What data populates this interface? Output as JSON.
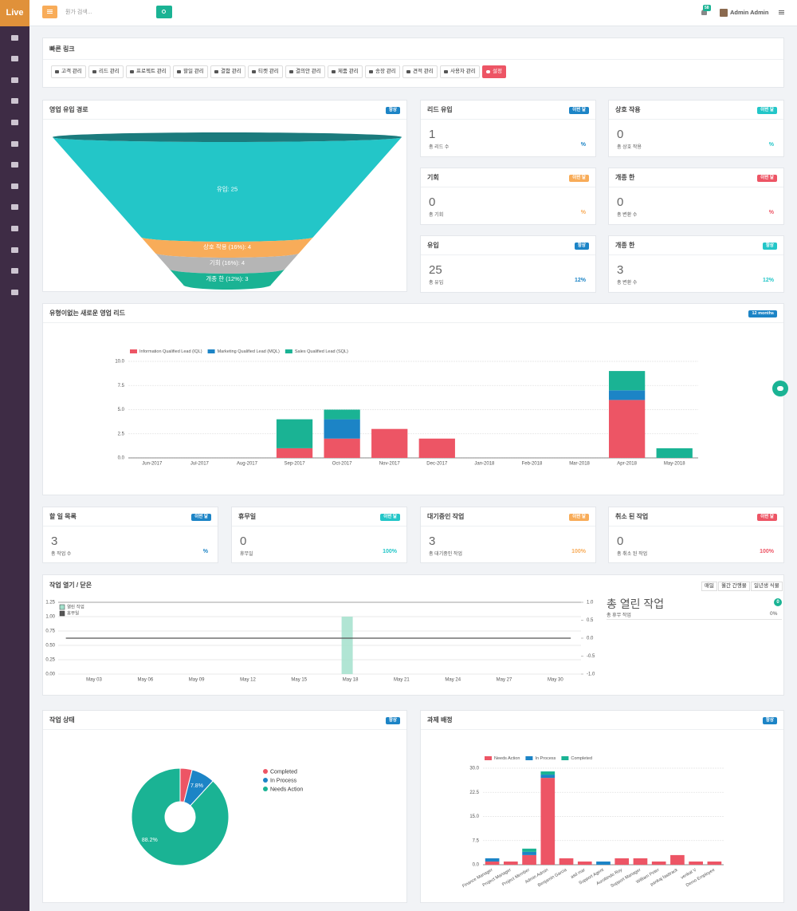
{
  "sidebar": {
    "logo": "Live"
  },
  "topbar": {
    "search_placeholder": "뭔가 검색...",
    "notifications": 58,
    "user": "Admin Admin"
  },
  "quick_links": {
    "title": "빠른 링크",
    "links": [
      "고객 관리",
      "리드 관리",
      "프로젝트 관리",
      "할일 관리",
      "결함 관리",
      "티켓 관리",
      "결의안 관리",
      "제품 관리",
      "송장 관리",
      "견적 관리",
      "사용자 관리",
      "설정"
    ]
  },
  "lead_cards": [
    {
      "title": "리드 유입",
      "badge": "이번 달",
      "color": "#1c84c6",
      "value": 1,
      "caption": "총 리드 수",
      "change": "%"
    },
    {
      "title": "상호 작용",
      "badge": "이번 달",
      "color": "#23c6c8",
      "value": 0,
      "caption": "총 상호 작용",
      "change": "%"
    },
    {
      "title": "기회",
      "badge": "이번 달",
      "color": "#f8ac59",
      "value": 0,
      "caption": "총 기회",
      "change": "%"
    },
    {
      "title": "개종 한",
      "badge": "이번 달",
      "color": "#ed5565",
      "value": 0,
      "caption": "총 변환 수",
      "change": "%"
    },
    {
      "title": "유입",
      "badge": "항상",
      "color": "#1c84c6",
      "value": 25,
      "caption": "총 유입",
      "change": "12%"
    },
    {
      "title": "개종 한",
      "badge": "항상",
      "color": "#23c6c8",
      "value": 3,
      "caption": "총 변환 수",
      "change": "12%"
    }
  ],
  "task_cards": [
    {
      "title": "할 일 목록",
      "badge": "이번 달",
      "color": "#1c84c6",
      "value": 3,
      "caption": "총 작업 수",
      "change": "%"
    },
    {
      "title": "휴무일",
      "badge": "이번 달",
      "color": "#23c6c8",
      "value": 0,
      "caption": "휴무일",
      "change": "100%"
    },
    {
      "title": "대기중인 작업",
      "badge": "이번 달",
      "color": "#f8ac59",
      "value": 3,
      "caption": "총 대기중인 작업",
      "change": "100%"
    },
    {
      "title": "취소 된 작업",
      "badge": "이번 달",
      "color": "#ed5565",
      "value": 0,
      "caption": "총 취소 된 작업",
      "change": "100%"
    }
  ],
  "task_summary": {
    "title": "총 열린 작업",
    "badge": 0,
    "caption": "총 휴무 작업",
    "change": "0%"
  },
  "task_chart_buttons": [
    "매일",
    "월간 간행물",
    "일년생 식물"
  ],
  "chart_data": [
    {
      "type": "funnel",
      "title": "영업 유입 경로",
      "badge": "항상",
      "values": [
        25,
        4,
        4,
        3
      ],
      "value_labels": [
        "유입: 25",
        "상호 작용 (16%): 4",
        "기회 (16%): 4",
        "개종 한 (12%): 3"
      ],
      "colors": [
        "#23c6c8",
        "#f8ac59",
        "#b5b5b5",
        "#1ab394"
      ]
    },
    {
      "type": "stacked_bar",
      "title": "유형이없는 새로운 영업 리드",
      "badge": "12 months",
      "categories": [
        "Jun-2017",
        "Jul-2017",
        "Aug-2017",
        "Sep-2017",
        "Oct-2017",
        "Nov-2017",
        "Dec-2017",
        "Jan-2018",
        "Feb-2018",
        "Mar-2018",
        "Apr-2018",
        "May-2018"
      ],
      "series": [
        {
          "name": "Information Qualified Lead (IQL)",
          "color": "#ed5565",
          "values": [
            0,
            0,
            0,
            1,
            2,
            3,
            2,
            0,
            0,
            0,
            6,
            0
          ]
        },
        {
          "name": "Marketing Qualified Lead (MQL)",
          "color": "#1c84c6",
          "values": [
            0,
            0,
            0,
            0,
            2,
            0,
            0,
            0,
            0,
            0,
            1,
            0
          ]
        },
        {
          "name": "Sales Qualified Lead (SQL)",
          "color": "#1ab394",
          "values": [
            0,
            0,
            0,
            3,
            1,
            0,
            0,
            0,
            0,
            0,
            2,
            1
          ]
        }
      ],
      "ylim": [
        0,
        10
      ],
      "yticks": [
        {
          "value": 0,
          "label": "0.0"
        },
        2.5,
        {
          "value": 5,
          "label": "5.0"
        },
        7.5,
        {
          "value": 10,
          "label": "10.0"
        }
      ],
      "grid": true
    },
    {
      "type": "combo",
      "title": "작업 열기 / 닫은",
      "categories": [
        "May 03",
        "May 06",
        "May 09",
        "May 12",
        "May 15",
        "May 18",
        "May 21",
        "May 24",
        "May 27",
        "May 30"
      ],
      "series": [
        {
          "name": "열린 작업",
          "color": "#a3e1cc",
          "kind": "bar",
          "values": [
            0,
            0,
            0,
            0,
            0,
            1,
            0,
            0,
            0,
            0
          ]
        },
        {
          "name": "휴무일",
          "color": "#555555",
          "kind": "line",
          "axis": "y2",
          "values": [
            0,
            0,
            0,
            0,
            0,
            0,
            0,
            0,
            0,
            0
          ]
        }
      ],
      "ylim": [
        0,
        1.25
      ],
      "yticks": [
        {
          "value": 0,
          "label": "0.00"
        },
        0.25,
        {
          "value": 0.5,
          "label": "0.50"
        },
        0.75,
        {
          "value": 1,
          "label": "1.00"
        },
        1.25
      ],
      "y2lim": [
        -1,
        1
      ],
      "y2ticks": [
        {
          "value": -1,
          "label": "-1.0"
        },
        -0.5,
        {
          "value": 0,
          "label": "0.0"
        },
        0.5,
        {
          "value": 1,
          "label": "1.0"
        }
      ],
      "grid": true
    },
    {
      "type": "pie",
      "title": "작업 상태",
      "badge": "항상",
      "donut": true,
      "categories": [
        "Completed",
        "In Process",
        "Needs Action"
      ],
      "values": [
        4,
        7.8,
        88.2
      ],
      "value_labels": [
        null,
        "7.8%",
        "88.2%"
      ],
      "colors": [
        "#ed5565",
        "#1c84c6",
        "#1ab394"
      ]
    },
    {
      "type": "stacked_bar",
      "title": "과제 배정",
      "badge": "항상",
      "categories": [
        "Finance Manager",
        "Project Manager",
        "Project Member",
        "Admin Admin",
        "Benjamin Garcia",
        "asd mar",
        "Support Agent",
        "Aurobindo Roy",
        "Support Manager",
        "William Peter",
        "pankaj fasttrack",
        "venkat V",
        "Demo Employee"
      ],
      "series": [
        {
          "name": "Needs Action",
          "color": "#ed5565",
          "values": [
            1,
            1,
            3,
            27,
            2,
            1,
            0,
            2,
            2,
            1,
            3,
            1,
            1
          ]
        },
        {
          "name": "In Process",
          "color": "#1c84c6",
          "values": [
            1,
            0,
            1,
            1,
            0,
            0,
            1,
            0,
            0,
            0,
            0,
            0,
            0
          ]
        },
        {
          "name": "Completed",
          "color": "#1ab394",
          "values": [
            0,
            0,
            1,
            1,
            0,
            0,
            0,
            0,
            0,
            0,
            0,
            0,
            0
          ]
        }
      ],
      "ylim": [
        0,
        30
      ],
      "yticks": [
        {
          "value": 0,
          "label": "0.0"
        },
        7.5,
        {
          "value": 15,
          "label": "15.0"
        },
        22.5,
        {
          "value": 30,
          "label": "30.0"
        }
      ],
      "grid": true
    }
  ]
}
